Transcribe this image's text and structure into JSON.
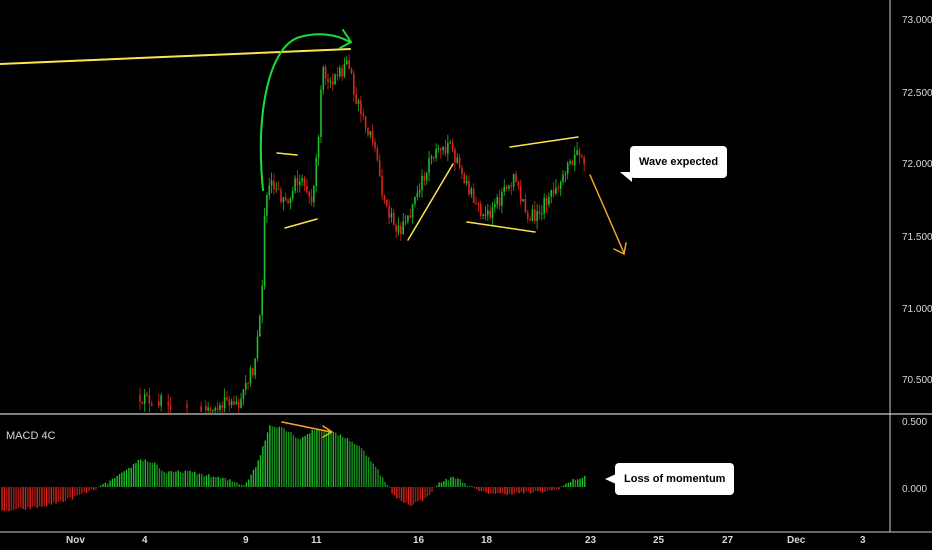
{
  "chart_data": {
    "type": "candlestick",
    "price_axis": {
      "ticks": [
        "73.000",
        "72.500",
        "72.000",
        "71.500",
        "71.000",
        "70.500"
      ],
      "ylim": [
        70.3,
        73.1
      ]
    },
    "macd": {
      "title": "MACD 4C",
      "ticks": [
        "0.500",
        "0.000"
      ]
    },
    "date_axis": {
      "labels": [
        "Nov",
        "4",
        "9",
        "11",
        "16",
        "18",
        "23",
        "25",
        "27",
        "Dec",
        "3"
      ]
    },
    "annotations": [
      {
        "text": "Wave expected"
      },
      {
        "text": "Loss of momentum"
      }
    ],
    "colors": {
      "up": "#1fbf2a",
      "down": "#e0241b",
      "trend": "#ffe44d",
      "arrow": "#f5a623",
      "curve": "#1fd93a",
      "divider": "#ffffff"
    }
  }
}
